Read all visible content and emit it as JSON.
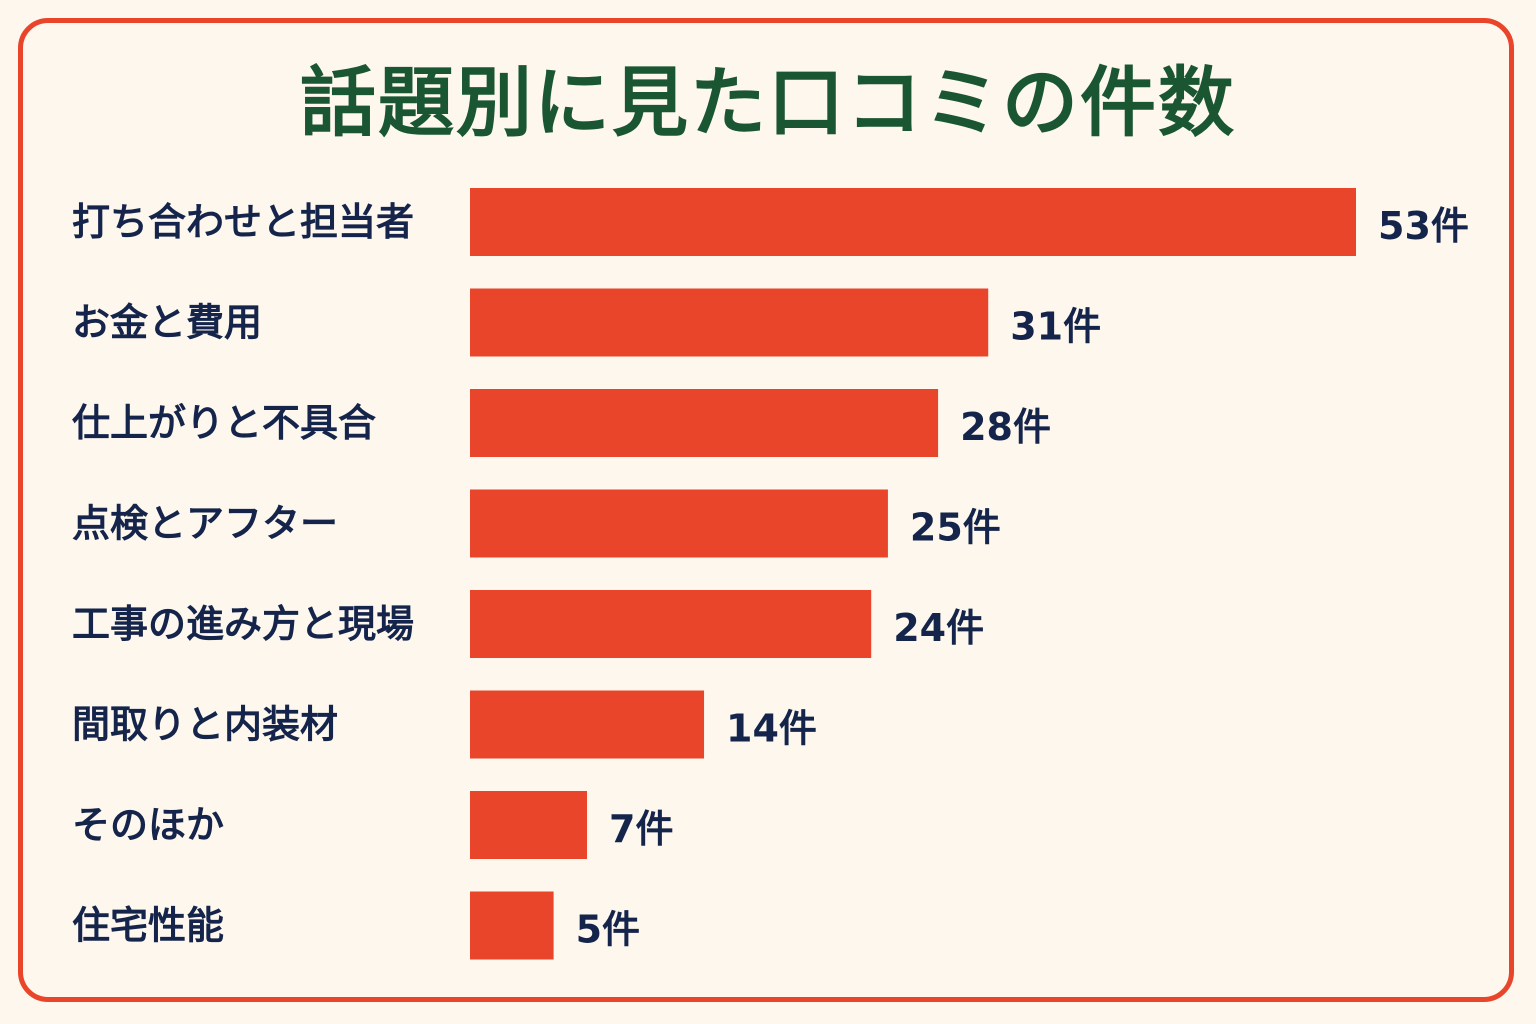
{
  "chart_data": {
    "type": "bar",
    "orientation": "horizontal",
    "title": "話題別に見た口コミの件数",
    "categories": [
      "打ち合わせと担当者",
      "お金と費用",
      "仕上がりと不具合",
      "点検とアフター",
      "工事の進み方と現場",
      "間取りと内装材",
      "そのほか",
      "住宅性能"
    ],
    "values": [
      53,
      31,
      28,
      25,
      24,
      14,
      7,
      5
    ],
    "value_labels": [
      "53件",
      "31件",
      "28件",
      "25件",
      "24件",
      "14件",
      "7件",
      "5件"
    ],
    "unit": "件",
    "xlabel": "",
    "ylabel": "",
    "xlim": [
      0,
      53
    ],
    "grid": false,
    "legend": "none",
    "bar_color": "#e8452b"
  },
  "colors": {
    "background": "#fdf7ee",
    "border": "#e8452b",
    "title": "#1a5632",
    "label_text": "#15244a",
    "bar": "#e8452b"
  }
}
